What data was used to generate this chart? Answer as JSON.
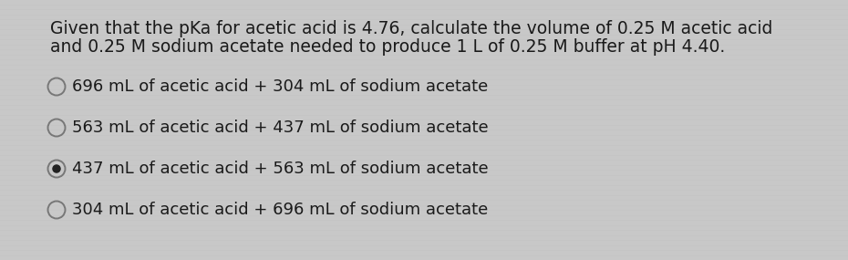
{
  "background_color": "#c8c8c8",
  "line_color": "#d4d4d4",
  "question_line1": "Given that the pKa for acetic acid is 4.76, calculate the volume of 0.25 M acetic acid",
  "question_line2": "and 0.25 M sodium acetate needed to produce 1 L of 0.25 M buffer at pH 4.40.",
  "options": [
    {
      "text": "696 mL of acetic acid + 304 mL of sodium acetate",
      "selected": false
    },
    {
      "text": "563 mL of acetic acid + 437 mL of sodium acetate",
      "selected": false
    },
    {
      "text": "437 mL of acetic acid + 563 mL of sodium acetate",
      "selected": true
    },
    {
      "text": "304 mL of acetic acid + 696 mL of sodium acetate",
      "selected": false
    }
  ],
  "question_fontsize": 13.5,
  "option_fontsize": 13.0,
  "text_color": "#1a1a1a",
  "circle_color": "#777777",
  "selected_dot_color": "#222222",
  "fig_width": 9.3,
  "fig_height": 2.85,
  "dpi": 100
}
